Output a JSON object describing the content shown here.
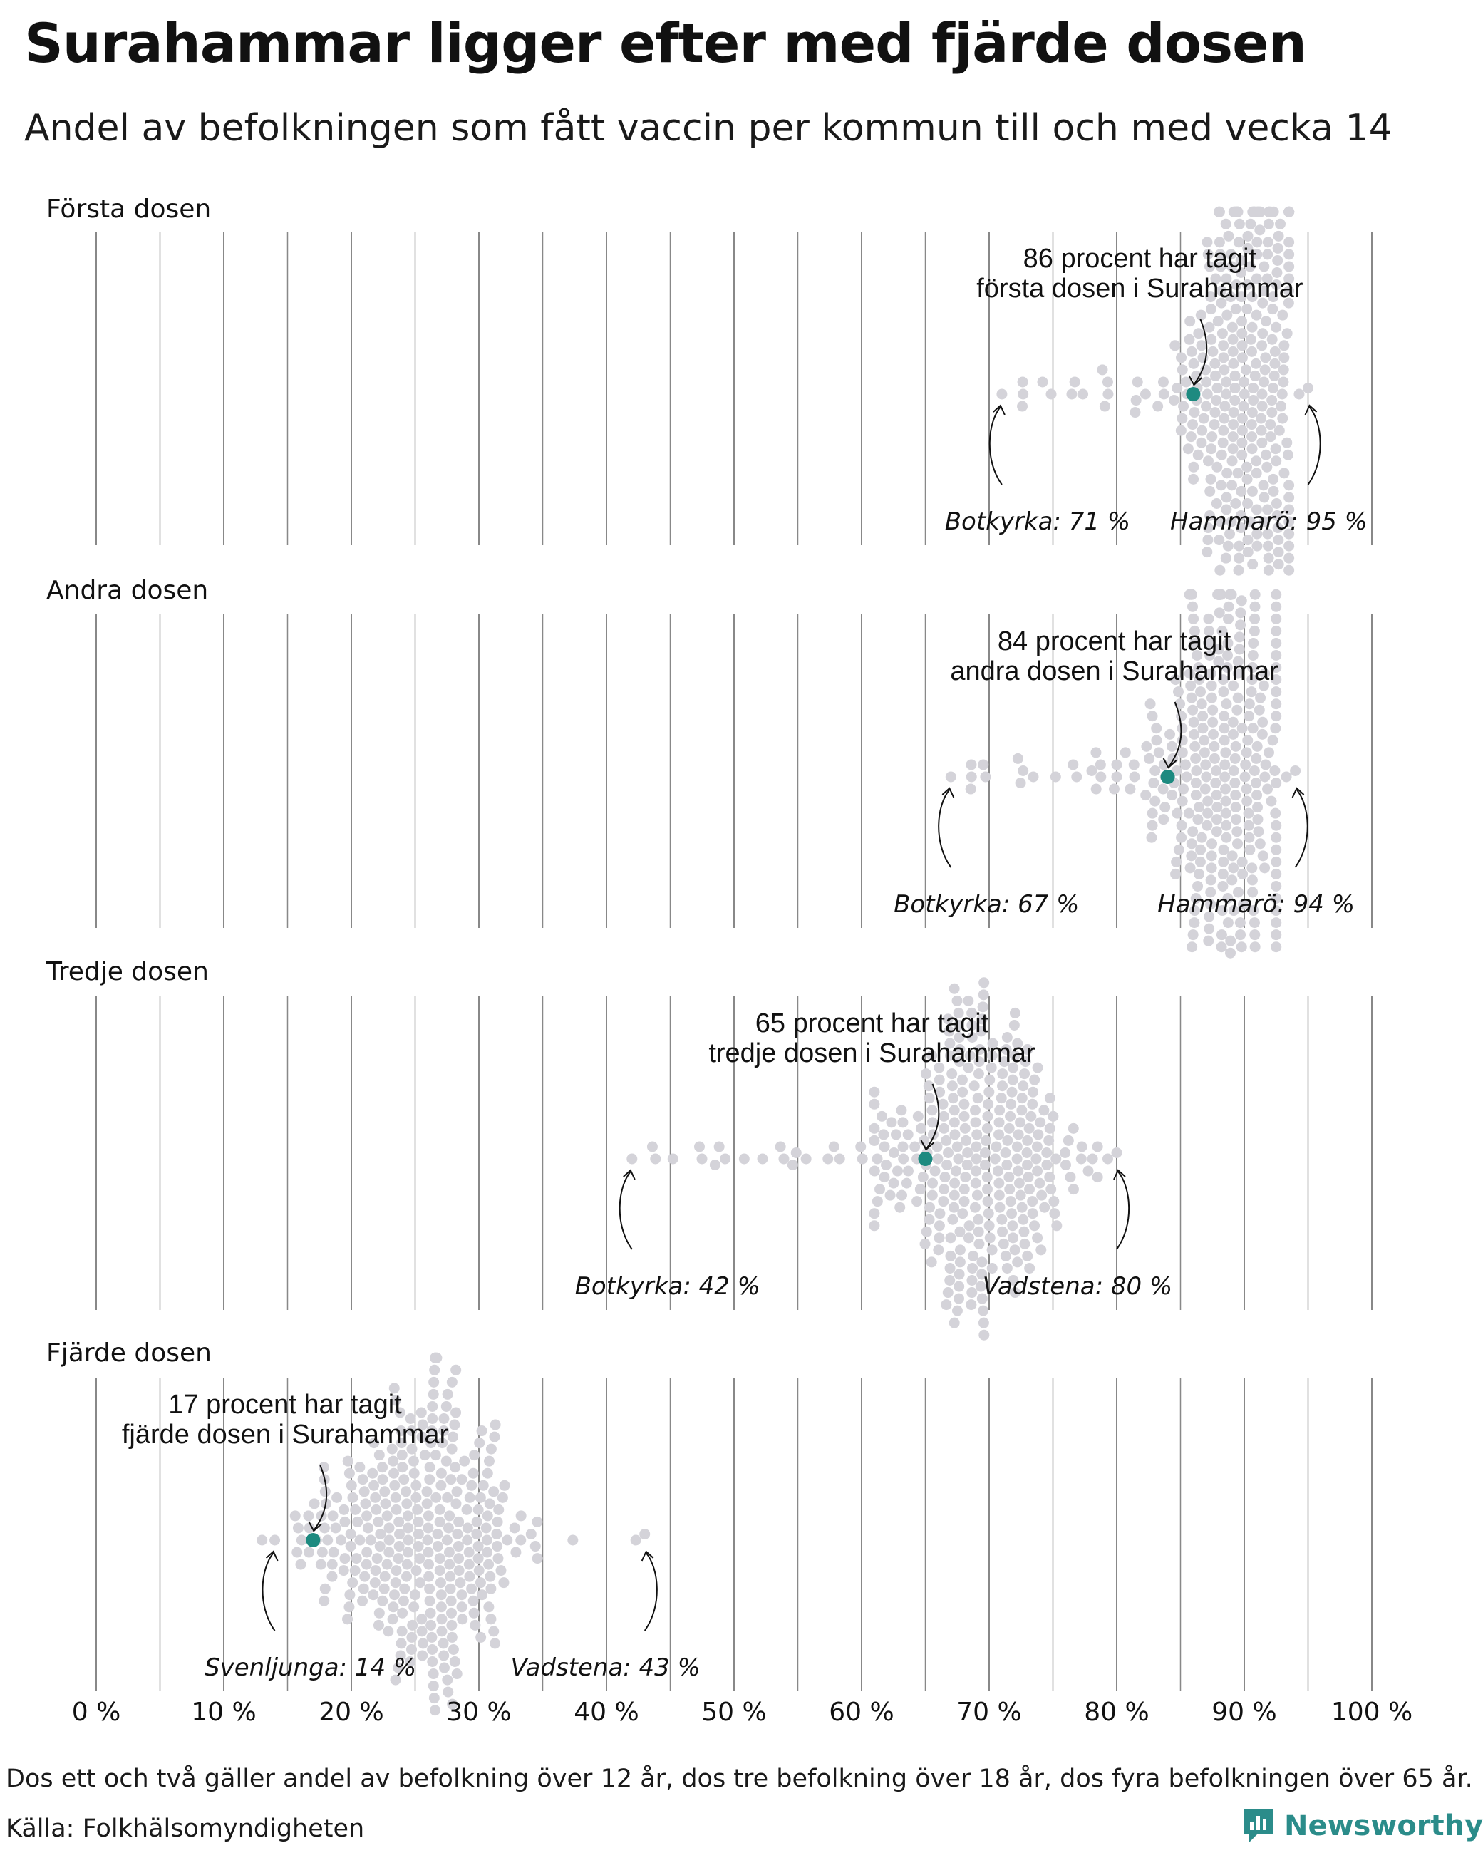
{
  "title": "Surahammar ligger efter med fjärde dosen",
  "subtitle": "Andel av befolkningen som fått vaccin per kommun till och med vecka 14",
  "note": "Dos ett och två gäller andel av befolkning över 12 år, dos tre befolkning över 18 år, dos fyra befolkningen över 65 år.",
  "source": "Källa: Folkhälsomyndigheten",
  "brand": {
    "name": "Newsworthy",
    "icon": "newsworthy-logo-icon",
    "color": "#2b8c8a"
  },
  "colors": {
    "dot": "#d4d3d9",
    "highlight": "#1d8a80",
    "gridline": "#888888",
    "text": "#111111"
  },
  "chart_data": {
    "type": "scatter",
    "subtype": "beeswarm",
    "x_ticks": [
      "0 %",
      "10 %",
      "20 %",
      "30 %",
      "40 %",
      "50 %",
      "60 %",
      "70 %",
      "80 %",
      "90 %",
      "100 %"
    ],
    "xlim": [
      0,
      100
    ],
    "gridlines": "vertical, every 5 %",
    "panels": [
      {
        "label": "Första dosen",
        "highlight_value": 86,
        "highlight_label": [
          "86 procent har tagit",
          "första dosen i Surahammar"
        ],
        "min": {
          "label": "Botkyrka: 71 %",
          "value": 71
        },
        "max": {
          "label": "Hammarö: 95 %",
          "value": 95
        },
        "center": 90,
        "spread": 3.2
      },
      {
        "label": "Andra dosen",
        "highlight_value": 84,
        "highlight_label": [
          "84 procent har tagit",
          "andra dosen i Surahammar"
        ],
        "min": {
          "label": "Botkyrka: 67 %",
          "value": 67
        },
        "max": {
          "label": "Hammarö: 94 %",
          "value": 94
        },
        "center": 88.5,
        "spread": 3.6
      },
      {
        "label": "Tredje dosen",
        "highlight_value": 65,
        "highlight_label": [
          "65 procent har tagit",
          "tredje dosen i Surahammar"
        ],
        "min": {
          "label": "Botkyrka: 42 %",
          "value": 42
        },
        "max": {
          "label": "Vadstena: 80 %",
          "value": 80
        },
        "center": 69,
        "spread": 5.2
      },
      {
        "label": "Fjärde dosen",
        "highlight_value": 17,
        "highlight_label": [
          "17 procent har tagit",
          "fjärde dosen i Surahammar"
        ],
        "min": {
          "label": "Svenljunga: 14 %",
          "value": 14
        },
        "max": {
          "label": "Vadstena: 43 %",
          "value": 43
        },
        "center": 26,
        "spread": 4.8
      }
    ]
  }
}
